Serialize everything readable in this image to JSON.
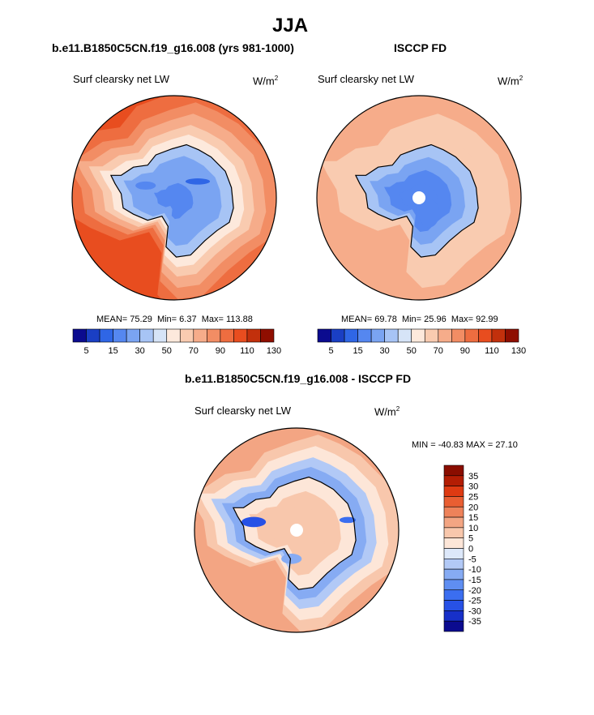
{
  "page_title": "JJA",
  "panels": [
    {
      "title": "b.e11.B1850C5CN.f19_g16.008 (yrs 981-1000)",
      "variable": "Surf clearsky net LW",
      "units_base": "W/m",
      "units_exp": "2",
      "stats": {
        "mean_label": "MEAN=",
        "mean": "75.29",
        "min_label": "Min=",
        "min": "6.37",
        "max_label": "Max=",
        "max": "113.88"
      }
    },
    {
      "title": "ISCCP FD",
      "variable": "Surf clearsky net LW",
      "units_base": "W/m",
      "units_exp": "2",
      "stats": {
        "mean_label": "MEAN=",
        "mean": "69.78",
        "min_label": "Min=",
        "min": "25.96",
        "max_label": "Max=",
        "max": "92.99"
      }
    },
    {
      "title": "b.e11.B1850C5CN.f19_g16.008 - ISCCP FD",
      "variable": "Surf clearsky net LW",
      "units_base": "W/m",
      "units_exp": "2",
      "stats_text": "MIN = -40.83  MAX =  27.10"
    }
  ],
  "colors": {
    "abs_scale": [
      "#0b0b8f",
      "#1a3fc4",
      "#2f66e6",
      "#5587f0",
      "#7aa4f2",
      "#a7c4f5",
      "#d6e4f7",
      "#fde9dc",
      "#f9cbb0",
      "#f6ac8a",
      "#f28d64",
      "#ee6d40",
      "#e84d1f",
      "#c2300c",
      "#8f0e00"
    ],
    "diff_scale": [
      "#0b0b8f",
      "#1730c9",
      "#2751e6",
      "#3b6ef0",
      "#5f8ef2",
      "#86abf3",
      "#b2c9f6",
      "#dde8fa",
      "#fde6d8",
      "#f8c7ac",
      "#f3a583",
      "#ee825a",
      "#e95e32",
      "#de3a12",
      "#b31d04",
      "#8a0d00"
    ],
    "coastline": "#000000",
    "missing": "#ffffff"
  },
  "chart_data": [
    {
      "type": "heatmap",
      "projection": "south-polar-stereographic",
      "title": "b.e11.B1850C5CN.f19_g16.008 (yrs 981-1000)",
      "label": "Surf clearsky net LW",
      "units": "W/m^2",
      "mean": 75.29,
      "min": 6.37,
      "max": 113.88,
      "colorbar_levels": [
        5,
        10,
        15,
        20,
        30,
        40,
        50,
        60,
        70,
        80,
        90,
        100,
        110,
        120,
        130
      ],
      "colorbar_ticks": [
        "5",
        "15",
        "30",
        "50",
        "70",
        "90",
        "110",
        "130"
      ],
      "zonal_pattern": {
        "lat_bands": [
          "continent interior",
          "coast",
          "sea-ice zone",
          "outer ocean"
        ],
        "approx_values": [
          35,
          55,
          75,
          105
        ]
      }
    },
    {
      "type": "heatmap",
      "projection": "south-polar-stereographic",
      "title": "ISCCP FD",
      "label": "Surf clearsky net LW",
      "units": "W/m^2",
      "mean": 69.78,
      "min": 25.96,
      "max": 92.99,
      "colorbar_levels": [
        5,
        10,
        15,
        20,
        30,
        40,
        50,
        60,
        70,
        80,
        90,
        100,
        110,
        120,
        130
      ],
      "colorbar_ticks": [
        "5",
        "15",
        "30",
        "50",
        "70",
        "90",
        "110",
        "130"
      ],
      "zonal_pattern": {
        "lat_bands": [
          "continent interior",
          "coast",
          "sea-ice zone",
          "outer ocean"
        ],
        "approx_values": [
          35,
          50,
          75,
          85
        ]
      }
    },
    {
      "type": "heatmap",
      "projection": "south-polar-stereographic",
      "title": "b.e11.B1850C5CN.f19_g16.008 - ISCCP FD",
      "label": "Surf clearsky net LW",
      "units": "W/m^2",
      "min": -40.83,
      "max": 27.1,
      "colorbar_levels": [
        -35,
        -30,
        -25,
        -20,
        -15,
        -10,
        -5,
        0,
        5,
        10,
        15,
        20,
        25,
        30,
        35
      ],
      "colorbar_ticks": [
        "35",
        "30",
        "25",
        "20",
        "15",
        "10",
        "5",
        "0",
        "-5",
        "-10",
        "-15",
        "-20",
        "-25",
        "-30",
        "-35"
      ],
      "zonal_pattern": {
        "lat_bands": [
          "continent interior",
          "coast",
          "sea-ice zone",
          "outer ocean"
        ],
        "approx_values": [
          7,
          -10,
          -5,
          12
        ]
      }
    }
  ]
}
